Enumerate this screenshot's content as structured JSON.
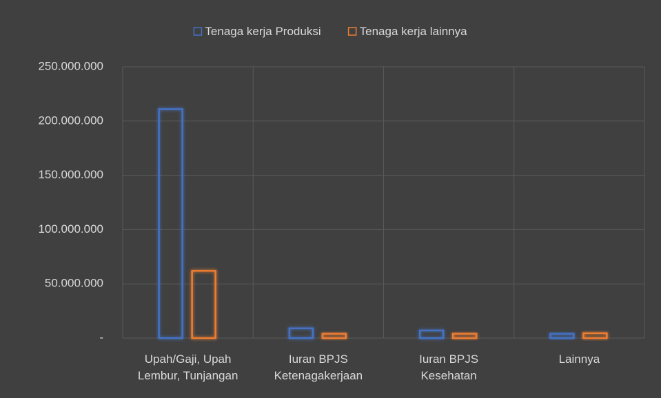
{
  "chart_data": {
    "type": "bar",
    "categories": [
      "Upah/Gaji, Upah Lembur, Tunjangan",
      "Iuran BPJS Ketenagakerjaan",
      "Iuran BPJS Kesehatan",
      "Lainnya"
    ],
    "series": [
      {
        "name": "Tenaga kerja Produksi",
        "color": "#4472c4",
        "values": [
          211000000,
          9000000,
          7000000,
          4000000
        ]
      },
      {
        "name": "Tenaga kerja lainnya",
        "color": "#ed7d31",
        "values": [
          62000000,
          4000000,
          4000000,
          4500000
        ]
      }
    ],
    "ylim": [
      0,
      250000000
    ],
    "yticks": [
      {
        "value": 0,
        "label": "-"
      },
      {
        "value": 50000000,
        "label": "50.000.000"
      },
      {
        "value": 100000000,
        "label": "100.000.000"
      },
      {
        "value": 150000000,
        "label": "150.000.000"
      },
      {
        "value": 200000000,
        "label": "200.000.000"
      },
      {
        "value": 250000000,
        "label": "250.000.000"
      }
    ],
    "grid": true,
    "legend": "top"
  }
}
